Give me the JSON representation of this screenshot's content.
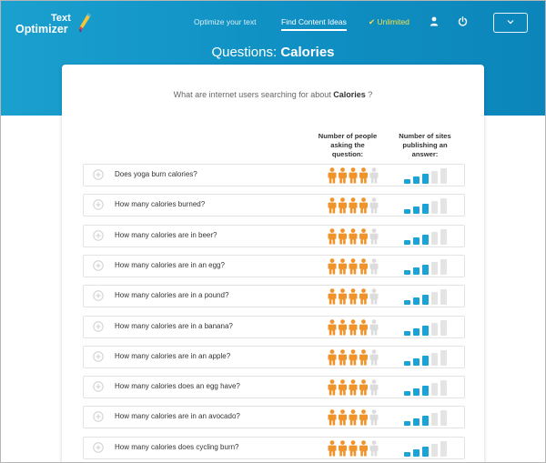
{
  "app": {
    "logo_line1": "Text",
    "logo_line2": "Optimizer"
  },
  "nav": {
    "optimize": "Optimize your text",
    "find": "Find Content Ideas",
    "unlimited": "✔ Unlimited"
  },
  "header": {
    "title_prefix": "Questions: ",
    "title_topic": "Calories"
  },
  "card": {
    "subtitle_prefix": "What are internet users searching for about ",
    "subtitle_topic": "Calories",
    "subtitle_suffix": " ?",
    "col_people": "Number of people asking the question:",
    "col_sites": "Number of sites publishing an answer:"
  },
  "colors": {
    "banner": "#1aa0cf",
    "person_active": "#f0932b",
    "person_inactive": "#dcdcdc",
    "bar_active": "#1aa3d4",
    "bar_inactive": "#e4e4e4"
  },
  "icons": {
    "expand": "plus-circle-icon",
    "user": "user-icon",
    "power": "power-icon",
    "dropdown": "chevron-down-icon"
  },
  "questions": [
    {
      "text": "Does yoga burn calories?",
      "people": 4,
      "sites": 3
    },
    {
      "text": "How many calories burned?",
      "people": 4,
      "sites": 3
    },
    {
      "text": "How many calories are in beer?",
      "people": 4,
      "sites": 3
    },
    {
      "text": "How many calories are in an egg?",
      "people": 4,
      "sites": 3
    },
    {
      "text": "How many calories are in a pound?",
      "people": 4,
      "sites": 3
    },
    {
      "text": "How many calories are in a banana?",
      "people": 4,
      "sites": 3
    },
    {
      "text": "How many calories are in an apple?",
      "people": 4,
      "sites": 3
    },
    {
      "text": "How many calories does an egg have?",
      "people": 4,
      "sites": 3
    },
    {
      "text": "How many calories are in an avocado?",
      "people": 4,
      "sites": 3
    },
    {
      "text": "How many calories does cycling burn?",
      "people": 4,
      "sites": 3
    }
  ]
}
